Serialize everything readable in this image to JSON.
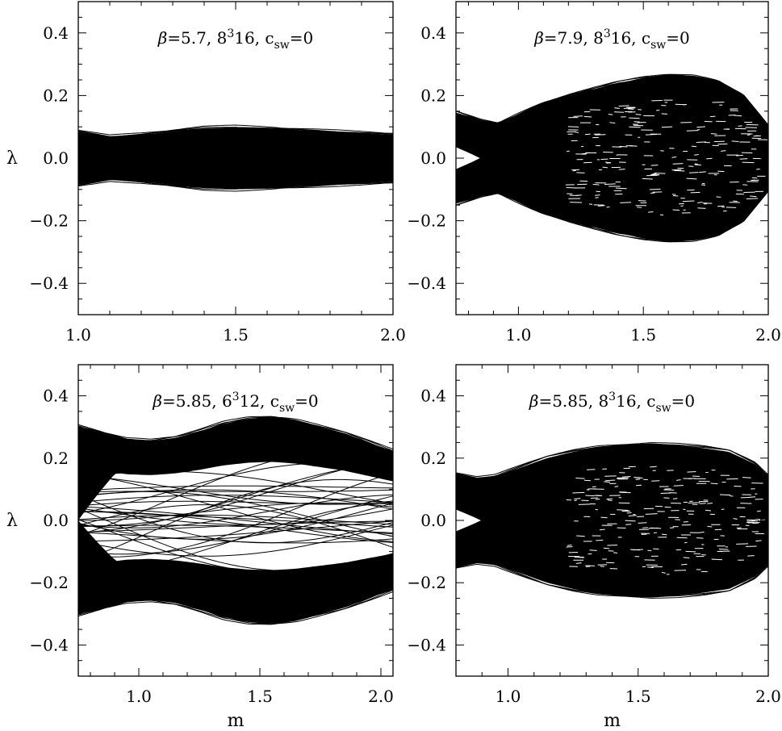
{
  "chart_data": [
    {
      "type": "line",
      "title": "β=5.7, 8³16, c_sw=0",
      "title_parts": {
        "beta": "β",
        "beta_val": "=5.7, 8",
        "sup": "3",
        "rest": "16, c",
        "sub": "sw",
        "tail": "=0"
      },
      "xlim": [
        1.0,
        2.0
      ],
      "ylim": [
        -0.5,
        0.5
      ],
      "x_ticks": [
        "1.0",
        "1.5",
        "2.0"
      ],
      "y_ticks": [
        "0.4",
        "0.2",
        "0.0",
        "−0.2",
        "−0.4"
      ],
      "xlabel": "",
      "ylabel": "λ",
      "grid": false,
      "band_envelope": {
        "m": [
          1.0,
          1.1,
          1.2,
          1.3,
          1.4,
          1.5,
          1.6,
          1.7,
          1.8,
          1.9,
          2.0
        ],
        "lambda_max": [
          0.085,
          0.068,
          0.075,
          0.085,
          0.095,
          0.098,
          0.095,
          0.09,
          0.085,
          0.08,
          0.075
        ]
      },
      "crossing_lines": 0
    },
    {
      "type": "line",
      "title": "β=7.9, 8³16, c_sw=0",
      "title_parts": {
        "beta": "β",
        "beta_val": "=7.9, 8",
        "sup": "3",
        "rest": "16, c",
        "sub": "sw",
        "tail": "=0"
      },
      "xlim": [
        0.75,
        2.0
      ],
      "ylim": [
        -0.5,
        0.5
      ],
      "x_ticks": [
        "1.0",
        "1.5",
        "2.0"
      ],
      "y_ticks": [
        "0.4",
        "0.2",
        "0.0",
        "−0.2",
        "−0.4"
      ],
      "xlabel": "",
      "ylabel": "",
      "grid": false,
      "band_envelope": {
        "m": [
          0.75,
          0.85,
          0.92,
          1.0,
          1.1,
          1.2,
          1.3,
          1.4,
          1.5,
          1.6,
          1.7,
          1.8,
          1.9,
          2.0
        ],
        "lambda_max": [
          0.145,
          0.12,
          0.11,
          0.14,
          0.175,
          0.2,
          0.22,
          0.24,
          0.255,
          0.265,
          0.262,
          0.245,
          0.2,
          0.1
        ]
      },
      "crossing_lines": 0
    },
    {
      "type": "line",
      "title": "β=5.85, 6³12, c_sw=0",
      "title_parts": {
        "beta": "β",
        "beta_val": "=5.85, 6",
        "sup": "3",
        "rest": "12, c",
        "sub": "sw",
        "tail": "=0"
      },
      "xlim": [
        0.75,
        2.05
      ],
      "ylim": [
        -0.5,
        0.5
      ],
      "x_ticks": [
        "1.0",
        "1.5",
        "2.0"
      ],
      "y_ticks": [
        "0.4",
        "0.2",
        "0.0",
        "−0.2",
        "−0.4"
      ],
      "xlabel": "m",
      "ylabel": "λ",
      "grid": false,
      "band_envelope": {
        "m": [
          0.75,
          0.85,
          0.95,
          1.05,
          1.15,
          1.25,
          1.35,
          1.45,
          1.55,
          1.65,
          1.75,
          1.85,
          1.95,
          2.05
        ],
        "lambda_max": [
          0.3,
          0.28,
          0.26,
          0.255,
          0.265,
          0.285,
          0.31,
          0.325,
          0.33,
          0.32,
          0.3,
          0.28,
          0.25,
          0.22
        ]
      },
      "crossing_lines": 34
    },
    {
      "type": "line",
      "title": "β=5.85, 8³16, c_sw=0",
      "title_parts": {
        "beta": "β",
        "beta_val": "=5.85, 8",
        "sup": "3",
        "rest": "16, c",
        "sub": "sw",
        "tail": "=0"
      },
      "xlim": [
        0.8,
        2.0
      ],
      "ylim": [
        -0.5,
        0.5
      ],
      "x_ticks": [
        "1.0",
        "1.5",
        "2.0"
      ],
      "y_ticks": [
        "0.4",
        "0.2",
        "0.0",
        "−0.2",
        "−0.4"
      ],
      "xlabel": "m",
      "ylabel": "",
      "grid": false,
      "band_envelope": {
        "m": [
          0.8,
          0.88,
          0.95,
          1.05,
          1.15,
          1.25,
          1.35,
          1.45,
          1.55,
          1.65,
          1.75,
          1.85,
          1.95,
          2.0
        ],
        "lambda_max": [
          0.15,
          0.135,
          0.14,
          0.17,
          0.2,
          0.22,
          0.235,
          0.242,
          0.245,
          0.24,
          0.232,
          0.22,
          0.18,
          0.14
        ]
      },
      "crossing_lines": 0
    }
  ]
}
